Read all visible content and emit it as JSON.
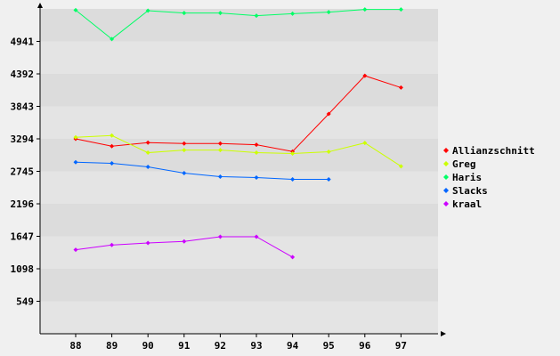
{
  "chart_data": {
    "type": "line",
    "title": "",
    "xlabel": "",
    "ylabel": "",
    "categories": [
      "88",
      "89",
      "90",
      "91",
      "92",
      "93",
      "94",
      "95",
      "96",
      "97"
    ],
    "y_ticks": [
      "549",
      "1098",
      "1647",
      "2196",
      "2745",
      "3294",
      "3843",
      "4392",
      "4941"
    ],
    "ylim": [
      0,
      5490
    ],
    "grid": "horizontal alternating bands",
    "legend_position": "right",
    "series": [
      {
        "name": "Allianzschnitt",
        "color": "#ff0000",
        "values": [
          3294,
          3170,
          3230,
          3215,
          3215,
          3195,
          3080,
          3715,
          4360,
          4160
        ]
      },
      {
        "name": "Greg",
        "color": "#ccff00",
        "values": [
          3320,
          3350,
          3060,
          3105,
          3105,
          3060,
          3045,
          3075,
          3225,
          2830
        ]
      },
      {
        "name": "Haris",
        "color": "#00ff66",
        "values": [
          5470,
          4980,
          5460,
          5420,
          5420,
          5375,
          5410,
          5435,
          5480,
          5480
        ]
      },
      {
        "name": "Slacks",
        "color": "#0066ff",
        "values": [
          2900,
          2880,
          2820,
          2715,
          2655,
          2640,
          2610,
          2610,
          null,
          null
        ]
      },
      {
        "name": "kraal",
        "color": "#cc00ff",
        "values": [
          1420,
          1500,
          1535,
          1560,
          1640,
          1640,
          1295,
          null,
          null,
          null
        ]
      }
    ]
  }
}
